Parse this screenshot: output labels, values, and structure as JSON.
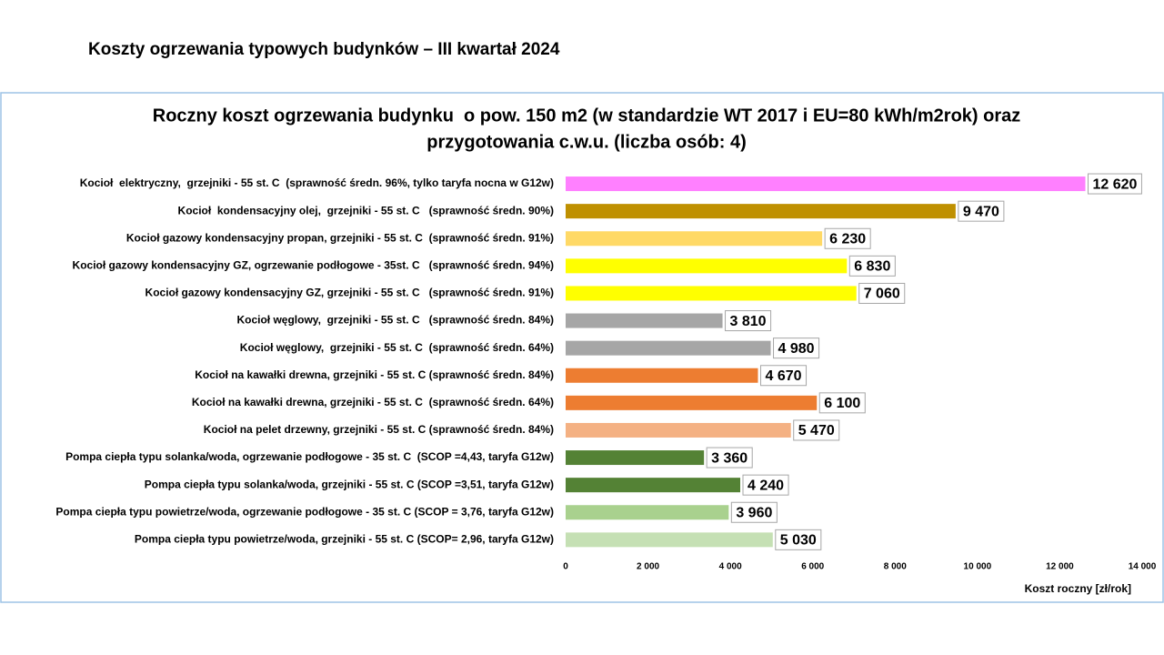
{
  "page_title": "Koszty ogrzewania typowych budynków – III kwartał 2024",
  "chart_data": {
    "type": "bar",
    "orientation": "horizontal",
    "title": [
      "Roczny koszt ogrzewania budynku  o pow. 150 m2 (w standardzie WT 2017 i EU=80 kWh/m2rok) oraz",
      "przygotowania c.w.u. (liczba osób: 4)"
    ],
    "xlabel": "Koszt roczny [zł/rok]",
    "categories": [
      "Kocioł  elektryczny,  grzejniki - 55 st. C  (sprawność średn. 96%, tylko taryfa nocna w G12w)",
      "Kocioł  kondensacyjny olej,  grzejniki - 55 st. C   (sprawność średn. 90%)",
      "Kocioł gazowy kondensacyjny propan, grzejniki - 55 st. C  (sprawność średn. 91%)",
      "Kocioł gazowy kondensacyjny GZ, ogrzewanie podłogowe - 35st. C   (sprawność średn. 94%)",
      "Kocioł gazowy kondensacyjny GZ, grzejniki - 55 st. C   (sprawność średn. 91%)",
      "Kocioł węglowy,  grzejniki - 55 st. C   (sprawność średn. 84%)",
      "Kocioł węglowy,  grzejniki - 55 st. C  (sprawność średn. 64%)",
      "Kocioł na kawałki drewna, grzejniki - 55 st. C (sprawność średn. 84%)",
      "Kocioł na kawałki drewna, grzejniki - 55 st. C  (sprawność średn. 64%)",
      "Kocioł na pelet drzewny, grzejniki - 55 st. C (sprawność średn. 84%)",
      "Pompa ciepła typu solanka/woda, ogrzewanie podłogowe - 35 st. C  (SCOP =4,43, taryfa G12w)",
      "Pompa ciepła typu solanka/woda, grzejniki - 55 st. C (SCOP =3,51, taryfa G12w)",
      "Pompa ciepła typu powietrze/woda, ogrzewanie podłogowe - 35 st. C (SCOP = 3,76, taryfa G12w)",
      "Pompa ciepła typu powietrze/woda, grzejniki - 55 st. C (SCOP= 2,96, taryfa G12w)"
    ],
    "values": [
      12620,
      9470,
      6230,
      6830,
      7060,
      3810,
      4980,
      4670,
      6100,
      5470,
      3360,
      4240,
      3960,
      5030
    ],
    "value_labels": [
      "12 620",
      "9 470",
      "6 230",
      "6 830",
      "7 060",
      "3 810",
      "4 980",
      "4 670",
      "6 100",
      "5 470",
      "3 360",
      "4 240",
      "3 960",
      "5 030"
    ],
    "colors": [
      "#ff80ff",
      "#bf9000",
      "#ffd966",
      "#ffff00",
      "#ffff00",
      "#a6a6a6",
      "#a6a6a6",
      "#ed7d31",
      "#ed7d31",
      "#f4b183",
      "#548235",
      "#548235",
      "#a9d18e",
      "#c5e0b4"
    ],
    "xlim": [
      0,
      14000
    ],
    "xticks": [
      0,
      {
        "value": 2000,
        "label": "2 000"
      },
      {
        "value": 4000,
        "label": "4 000"
      },
      {
        "value": 6000,
        "label": "6 000"
      },
      {
        "value": 8000,
        "label": "8 000"
      },
      {
        "value": 10000,
        "label": "10 000"
      },
      {
        "value": 12000,
        "label": "12 000"
      },
      {
        "value": 14000,
        "label": "14 000"
      }
    ],
    "grid": false
  }
}
